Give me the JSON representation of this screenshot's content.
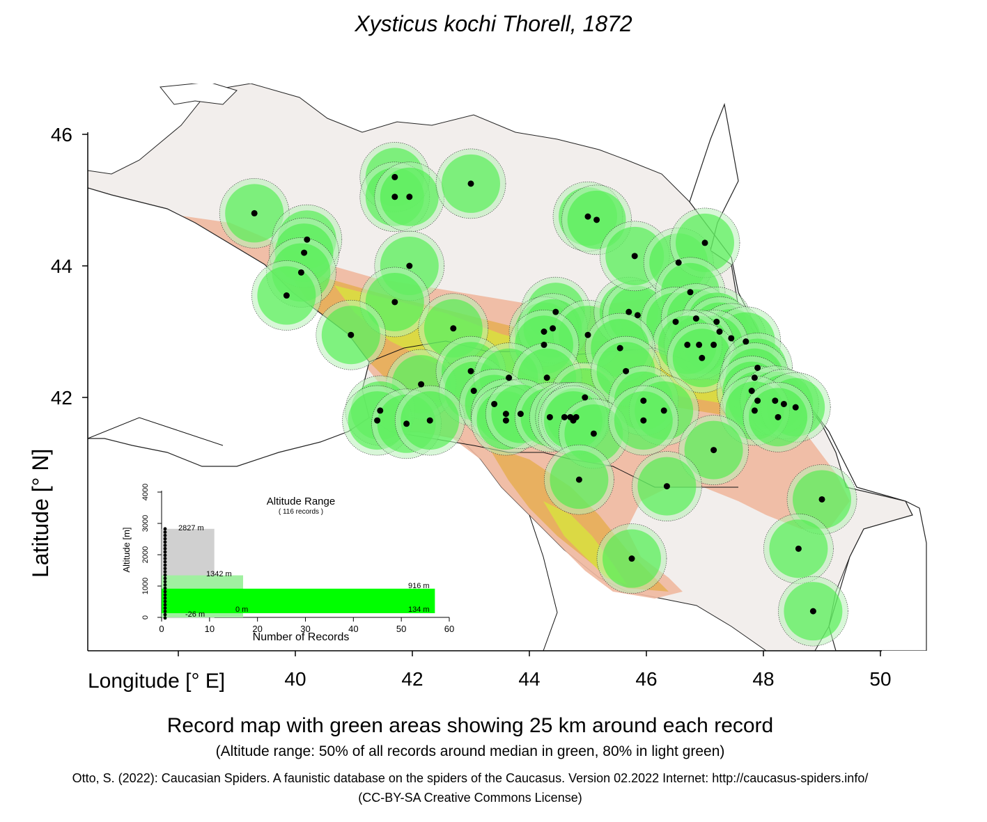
{
  "title": "Xysticus kochi Thorell, 1872",
  "axes": {
    "latitude_label": "Latitude [° N]",
    "longitude_label": "Longitude [° E]",
    "lat_ticks": [
      "46",
      "44",
      "42"
    ],
    "lon_ticks": [
      "40",
      "42",
      "44",
      "46",
      "48",
      "50"
    ]
  },
  "inset": {
    "title": "Altitude Range",
    "subtitle": "( 116 records )",
    "ylabel": "Altitude [m]",
    "xlabel": "Number of Records",
    "y_ticks": [
      "0",
      "1000",
      "2000",
      "3000",
      "4000"
    ],
    "x_ticks": [
      "0",
      "10",
      "20",
      "30",
      "40",
      "50",
      "60"
    ],
    "labels": {
      "max": "2827  m",
      "p80_high": "1342  m",
      "p50_high": "916  m",
      "p50_low": "134  m",
      "p80_low": "0  m",
      "min": "-26  m"
    }
  },
  "chart_data": {
    "type": "bar",
    "title": "Altitude Range",
    "subtitle": "( 116 records )",
    "xlabel": "Number of Records",
    "ylabel": "Altitude [m]",
    "xlim": [
      0,
      60
    ],
    "ylim": [
      0,
      4000
    ],
    "ranges": [
      {
        "name": "full",
        "low": -26,
        "high": 2827,
        "records": 11
      },
      {
        "name": "80%",
        "low": 0,
        "high": 1342,
        "records": 17
      },
      {
        "name": "50%",
        "low": 134,
        "high": 916,
        "records": 57
      }
    ]
  },
  "records": [
    {
      "lon": 39.3,
      "lat": 44.8
    },
    {
      "lon": 41.7,
      "lat": 45.35
    },
    {
      "lon": 41.7,
      "lat": 45.05
    },
    {
      "lon": 41.95,
      "lat": 45.05
    },
    {
      "lon": 43.0,
      "lat": 45.25
    },
    {
      "lon": 45.0,
      "lat": 44.75
    },
    {
      "lon": 45.15,
      "lat": 44.7
    },
    {
      "lon": 40.2,
      "lat": 44.4
    },
    {
      "lon": 40.15,
      "lat": 44.2
    },
    {
      "lon": 40.1,
      "lat": 43.9
    },
    {
      "lon": 41.95,
      "lat": 44.0
    },
    {
      "lon": 39.85,
      "lat": 43.55
    },
    {
      "lon": 41.7,
      "lat": 43.45
    },
    {
      "lon": 40.95,
      "lat": 42.95
    },
    {
      "lon": 42.7,
      "lat": 43.05
    },
    {
      "lon": 44.45,
      "lat": 43.3
    },
    {
      "lon": 44.25,
      "lat": 43.0
    },
    {
      "lon": 44.4,
      "lat": 43.05
    },
    {
      "lon": 45.0,
      "lat": 42.95
    },
    {
      "lon": 45.7,
      "lat": 43.3
    },
    {
      "lon": 45.85,
      "lat": 43.25
    },
    {
      "lon": 45.8,
      "lat": 44.15
    },
    {
      "lon": 46.55,
      "lat": 44.05
    },
    {
      "lon": 47.0,
      "lat": 44.35
    },
    {
      "lon": 46.75,
      "lat": 43.6
    },
    {
      "lon": 46.5,
      "lat": 43.15
    },
    {
      "lon": 46.85,
      "lat": 43.2
    },
    {
      "lon": 47.2,
      "lat": 43.15
    },
    {
      "lon": 47.25,
      "lat": 43.0
    },
    {
      "lon": 47.45,
      "lat": 42.9
    },
    {
      "lon": 47.7,
      "lat": 42.85
    },
    {
      "lon": 47.15,
      "lat": 42.8
    },
    {
      "lon": 46.9,
      "lat": 42.8
    },
    {
      "lon": 46.7,
      "lat": 42.8
    },
    {
      "lon": 46.95,
      "lat": 42.6
    },
    {
      "lon": 45.55,
      "lat": 42.75
    },
    {
      "lon": 44.25,
      "lat": 42.8
    },
    {
      "lon": 42.15,
      "lat": 42.2
    },
    {
      "lon": 43.0,
      "lat": 42.4
    },
    {
      "lon": 43.05,
      "lat": 42.1
    },
    {
      "lon": 43.65,
      "lat": 42.3
    },
    {
      "lon": 44.3,
      "lat": 42.3
    },
    {
      "lon": 44.95,
      "lat": 42.0
    },
    {
      "lon": 45.65,
      "lat": 42.4
    },
    {
      "lon": 45.95,
      "lat": 41.95
    },
    {
      "lon": 46.3,
      "lat": 41.8
    },
    {
      "lon": 47.9,
      "lat": 42.45
    },
    {
      "lon": 47.85,
      "lat": 42.3
    },
    {
      "lon": 47.8,
      "lat": 42.1
    },
    {
      "lon": 47.9,
      "lat": 41.95
    },
    {
      "lon": 48.2,
      "lat": 41.95
    },
    {
      "lon": 48.35,
      "lat": 41.9
    },
    {
      "lon": 48.55,
      "lat": 41.85
    },
    {
      "lon": 47.85,
      "lat": 41.8
    },
    {
      "lon": 48.25,
      "lat": 41.7
    },
    {
      "lon": 41.45,
      "lat": 41.8
    },
    {
      "lon": 41.4,
      "lat": 41.65
    },
    {
      "lon": 41.9,
      "lat": 41.6
    },
    {
      "lon": 42.3,
      "lat": 41.65
    },
    {
      "lon": 43.4,
      "lat": 41.9
    },
    {
      "lon": 43.6,
      "lat": 41.75
    },
    {
      "lon": 43.6,
      "lat": 41.65
    },
    {
      "lon": 43.85,
      "lat": 41.75
    },
    {
      "lon": 44.35,
      "lat": 41.7
    },
    {
      "lon": 44.6,
      "lat": 41.7
    },
    {
      "lon": 44.7,
      "lat": 41.7
    },
    {
      "lon": 44.8,
      "lat": 41.7
    },
    {
      "lon": 44.75,
      "lat": 41.65
    },
    {
      "lon": 45.1,
      "lat": 41.45
    },
    {
      "lon": 45.95,
      "lat": 41.65
    },
    {
      "lon": 47.15,
      "lat": 41.2
    },
    {
      "lon": 44.85,
      "lat": 40.75
    },
    {
      "lon": 46.35,
      "lat": 40.65
    },
    {
      "lon": 49.0,
      "lat": 40.45
    },
    {
      "lon": 48.6,
      "lat": 39.7
    },
    {
      "lon": 45.75,
      "lat": 39.55
    },
    {
      "lon": 48.85,
      "lat": 38.75
    }
  ],
  "caption": {
    "main": "Record map with green areas showing 25 km around each record",
    "sub": "(Altitude range: 50% of all records around median in green, 80% in light green)",
    "citation": "Otto, S. (2022): Caucasian Spiders. A faunistic database on the spiders of the Caucasus. Version 02.2022 Internet: http://caucasus-spiders.info/",
    "license": "(CC-BY-SA Creative Commons License)"
  },
  "colors": {
    "buffer_green": "#44ee44",
    "buffer_light_green": "#b8f0b8",
    "lowland": "#f2eeec",
    "foothill": "#f0b8a0",
    "mid": "#e8b060",
    "high": "#d8e040",
    "record_dot": "#000000",
    "inset_full": "#d0d0d0",
    "inset_80": "#a0f0a0",
    "inset_50": "#00ff00"
  }
}
